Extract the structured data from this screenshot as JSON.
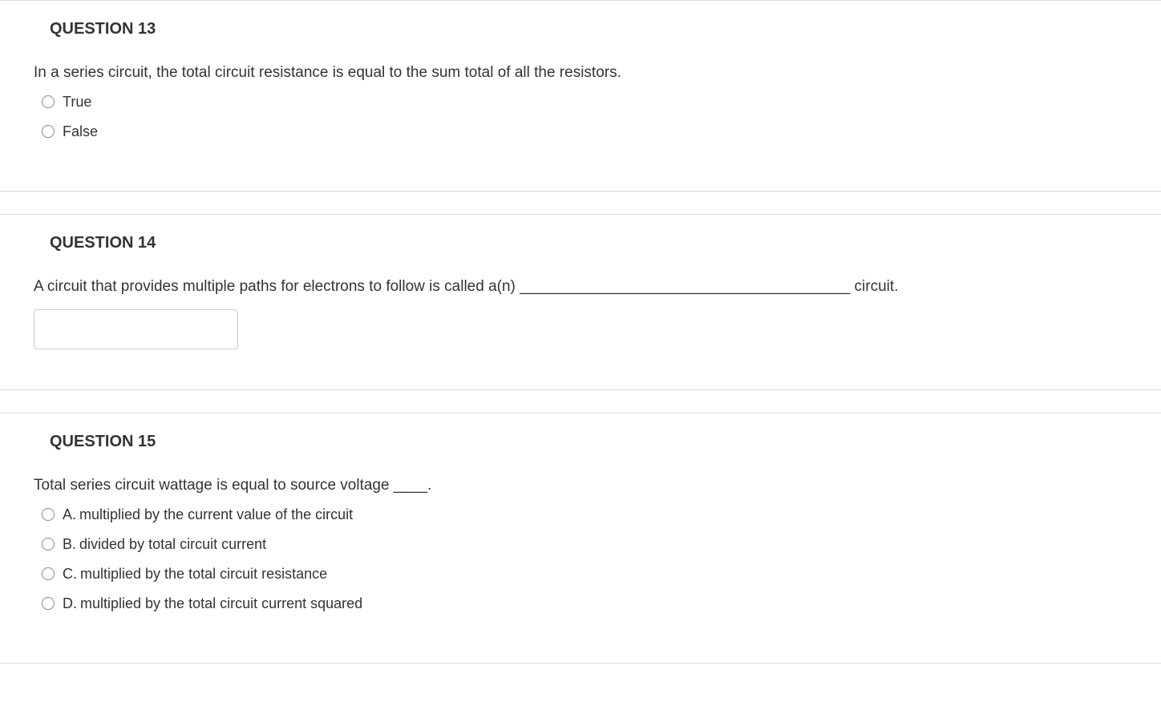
{
  "questions": [
    {
      "header": "QUESTION 13",
      "text": "In a series circuit, the total circuit resistance is equal to the sum total of all the resistors.",
      "type": "true_false",
      "options": [
        {
          "label": "True"
        },
        {
          "label": "False"
        }
      ]
    },
    {
      "header": "QUESTION 14",
      "text": "A circuit that provides multiple paths for electrons to follow is called a(n) _______________________________________ circuit.",
      "type": "fill_blank",
      "input_value": ""
    },
    {
      "header": "QUESTION 15",
      "text": "Total series circuit wattage is equal to source voltage ____.",
      "type": "multiple_choice",
      "options": [
        {
          "prefix": "A.",
          "label": "multiplied by the current value of the circuit"
        },
        {
          "prefix": "B.",
          "label": "divided by total circuit current"
        },
        {
          "prefix": "C.",
          "label": "multiplied by the total circuit resistance"
        },
        {
          "prefix": "D.",
          "label": "multiplied by the total circuit current squared"
        }
      ]
    }
  ],
  "colors": {
    "text": "#333333",
    "border": "#d8d8d8",
    "radio_border": "#888888",
    "input_border": "#cccccc",
    "background": "#ffffff"
  }
}
